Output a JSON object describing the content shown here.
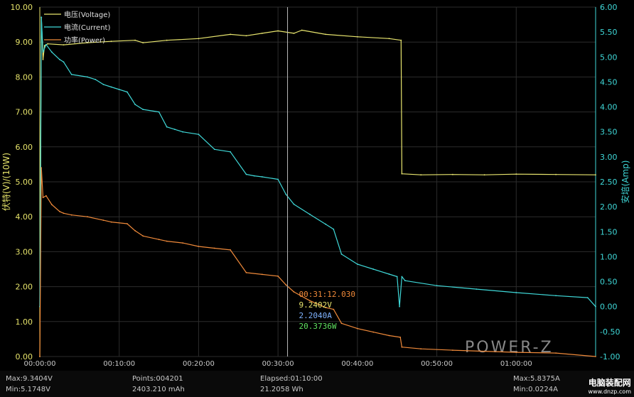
{
  "chart_data": {
    "type": "line",
    "y_left_label": "伏特(V)/(10W)",
    "y_right_label": "安培(Amp)",
    "y_left_ticks": [
      "10.00",
      "9.00",
      "8.00",
      "7.00",
      "6.00",
      "5.00",
      "4.00",
      "3.00",
      "2.00",
      "1.00",
      "0.00"
    ],
    "y_right_ticks": [
      "6.00",
      "5.50",
      "5.00",
      "4.50",
      "4.00",
      "3.50",
      "3.00",
      "2.50",
      "2.00",
      "1.50",
      "1.00",
      "0.50",
      "0.00",
      "-0.50",
      "-1.00"
    ],
    "x_ticks": [
      "00:00:00",
      "00:10:00",
      "00:20:00",
      "00:30:00",
      "00:40:00",
      "00:50:00",
      "01:00:00"
    ],
    "ylim_left": [
      0,
      10
    ],
    "ylim_right": [
      -1,
      6
    ],
    "xlim_min": [
      0,
      70
    ],
    "grid": true,
    "legend_position": "top-left",
    "series": [
      {
        "name": "电压(Voltage)",
        "color": "#e8e56e",
        "axis": "left",
        "x_min": [
          0,
          0.2,
          0.4,
          0.6,
          1,
          3,
          6,
          9,
          12,
          13,
          16,
          20,
          24,
          26,
          28,
          30,
          32,
          33,
          36,
          40,
          44,
          45.5,
          45.6,
          48,
          52,
          56,
          60,
          65,
          70
        ],
        "y": [
          0,
          9.7,
          8.5,
          8.9,
          8.95,
          8.92,
          8.98,
          9.02,
          9.05,
          8.98,
          9.05,
          9.1,
          9.22,
          9.18,
          9.25,
          9.32,
          9.25,
          9.34,
          9.22,
          9.15,
          9.1,
          9.05,
          5.23,
          5.2,
          5.21,
          5.2,
          5.22,
          5.21,
          5.2
        ]
      },
      {
        "name": "电流(Current)",
        "color": "#3fd8d8",
        "axis": "right",
        "x_min": [
          0,
          0.2,
          0.4,
          0.8,
          1.5,
          2.5,
          3,
          4,
          6,
          7,
          8,
          9,
          10,
          11,
          12,
          13,
          15,
          16,
          17,
          18,
          20,
          22,
          24,
          26,
          27,
          28,
          30,
          31,
          32,
          34,
          36,
          37,
          38,
          40,
          42,
          44,
          45,
          45.3,
          45.6,
          46,
          50,
          55,
          60,
          65,
          69,
          70
        ],
        "y": [
          0,
          5.8,
          5.1,
          5.25,
          5.1,
          4.95,
          4.9,
          4.65,
          4.6,
          4.55,
          4.45,
          4.4,
          4.35,
          4.3,
          4.05,
          3.95,
          3.9,
          3.6,
          3.55,
          3.5,
          3.45,
          3.15,
          3.1,
          2.65,
          2.62,
          2.6,
          2.55,
          2.25,
          2.05,
          1.85,
          1.65,
          1.55,
          1.05,
          0.85,
          0.75,
          0.65,
          0.6,
          0.0,
          0.6,
          0.52,
          0.42,
          0.35,
          0.28,
          0.22,
          0.18,
          0.0
        ]
      },
      {
        "name": "功率(Power)",
        "color": "#f08a3a",
        "axis": "left",
        "x_min": [
          0,
          0.2,
          0.4,
          0.8,
          1.5,
          2.5,
          3,
          4,
          6,
          8,
          9,
          11,
          12,
          13,
          15,
          16,
          18,
          20,
          22,
          24,
          26,
          28,
          30,
          31,
          32,
          34,
          36,
          37,
          38,
          40,
          42,
          44,
          45.4,
          45.6,
          48,
          52,
          56,
          60,
          65,
          70
        ],
        "y": [
          0,
          5.4,
          4.55,
          4.6,
          4.35,
          4.15,
          4.1,
          4.05,
          4.0,
          3.9,
          3.85,
          3.8,
          3.6,
          3.45,
          3.35,
          3.3,
          3.25,
          3.15,
          3.1,
          3.05,
          2.4,
          2.35,
          2.3,
          2.05,
          1.85,
          1.6,
          1.4,
          1.35,
          0.95,
          0.8,
          0.7,
          0.6,
          0.55,
          0.27,
          0.22,
          0.18,
          0.15,
          0.12,
          0.1,
          0.0
        ]
      }
    ],
    "cursor": {
      "x_min": 31.2,
      "time": "00:31:12.030",
      "voltage": "9.2402V",
      "current": "2.2040A",
      "power": "20.3736W"
    },
    "watermark": "POWER-Z"
  },
  "status": {
    "max_v": "Max:9.3404V",
    "min_v": "Min:5.1748V",
    "points": "Points:004201",
    "capacity": "2403.210 mAh",
    "elapsed": "Elapsed:01:10:00",
    "energy": "21.2058 Wh",
    "max_a": "Max:5.8375A",
    "min_a": "Min:0.0224A",
    "site_name": "电脑装配网",
    "site_url": "www.dnzp.com"
  }
}
